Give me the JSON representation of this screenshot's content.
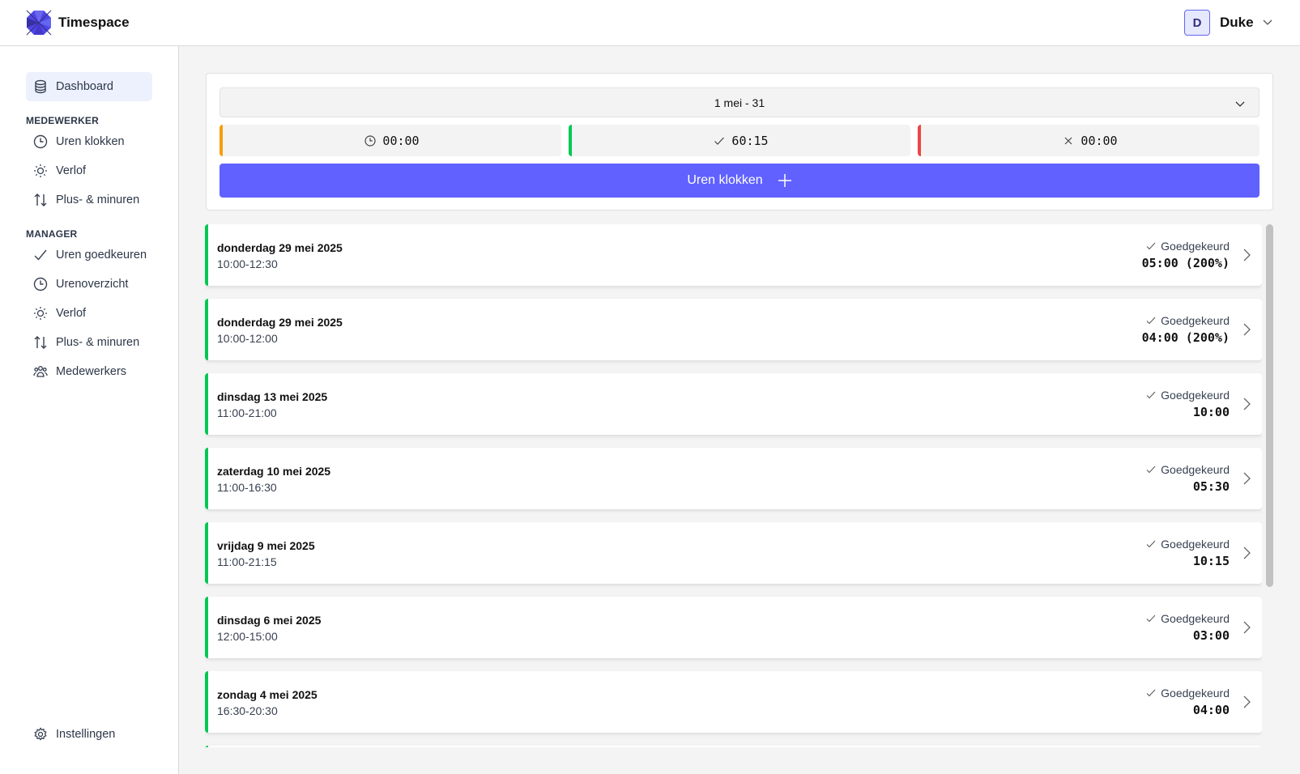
{
  "app": {
    "name": "Timespace",
    "user_initial": "D",
    "user_name": "Duke"
  },
  "sidebar": {
    "dashboard": "Dashboard",
    "medewerker_title": "MEDEWERKER",
    "medewerker": [
      "Uren klokken",
      "Verlof",
      "Plus- & minuren"
    ],
    "manager_title": "MANAGER",
    "manager": [
      "Uren goedkeuren",
      "Urenoverzicht",
      "Verlof",
      "Plus- & minuren",
      "Medewerkers"
    ],
    "settings": "Instellingen"
  },
  "summary": {
    "period": "1 mei - 31",
    "pending": "00:00",
    "approved": "60:15",
    "rejected": "00:00",
    "colors": {
      "pending": "#f59e0b",
      "approved": "#00c853",
      "rejected": "#ef4444",
      "accent": "#6161ff"
    },
    "clock_button": "Uren klokken"
  },
  "entries": [
    {
      "date": "donderdag 29 mei 2025",
      "time": "10:00-12:30",
      "status": "Goedgekeurd",
      "duration": "05:00 (200%)"
    },
    {
      "date": "donderdag 29 mei 2025",
      "time": "10:00-12:00",
      "status": "Goedgekeurd",
      "duration": "04:00 (200%)"
    },
    {
      "date": "dinsdag 13 mei 2025",
      "time": "11:00-21:00",
      "status": "Goedgekeurd",
      "duration": "10:00"
    },
    {
      "date": "zaterdag 10 mei 2025",
      "time": "11:00-16:30",
      "status": "Goedgekeurd",
      "duration": "05:30"
    },
    {
      "date": "vrijdag 9 mei 2025",
      "time": "11:00-21:15",
      "status": "Goedgekeurd",
      "duration": "10:15"
    },
    {
      "date": "dinsdag 6 mei 2025",
      "time": "12:00-15:00",
      "status": "Goedgekeurd",
      "duration": "03:00"
    },
    {
      "date": "zondag 4 mei 2025",
      "time": "16:30-20:30",
      "status": "Goedgekeurd",
      "duration": "04:00"
    }
  ]
}
